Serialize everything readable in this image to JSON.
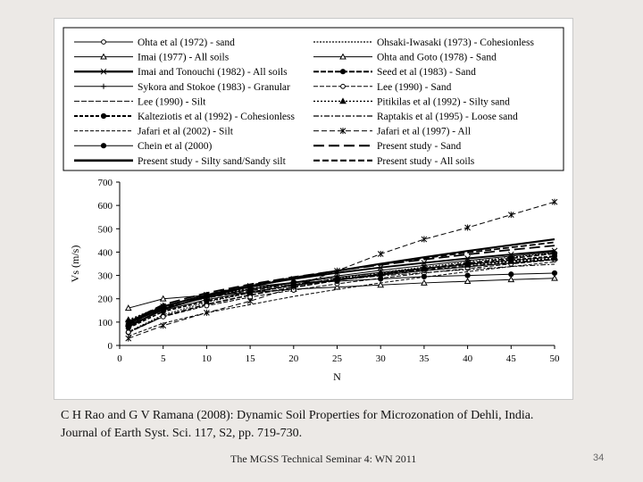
{
  "slide": {
    "caption_line1": "C H Rao and G V Ramana (2008): Dynamic Soil Properties for Microzonation of Dehli, India.",
    "caption_line2": "Journal of Earth Syst. Sci. 117, S2, pp. 719-730.",
    "footer": "The MGSS Technical Seminar 4: WN 2011",
    "page_number": "34"
  },
  "chart_data": {
    "type": "line",
    "title": "",
    "xlabel": "N",
    "ylabel": "Vs (m/s)",
    "xlim": [
      0,
      50
    ],
    "ylim": [
      0,
      700
    ],
    "xticks": [
      0,
      5,
      10,
      15,
      20,
      25,
      30,
      35,
      40,
      45,
      50
    ],
    "yticks": [
      0,
      100,
      200,
      300,
      400,
      500,
      600,
      700
    ],
    "grid": false,
    "legend_position": "top",
    "x": [
      1,
      5,
      10,
      15,
      20,
      25,
      30,
      35,
      40,
      45,
      50
    ],
    "series": [
      {
        "name": "Ohta et al (1972) - sand",
        "values": [
          88,
          150,
          196,
          230,
          257,
          280,
          301,
          320,
          337,
          353,
          368
        ]
      },
      {
        "name": "Ohsaki-Iwasaki (1973) - Cohesionless",
        "values": [
          59,
          131,
          185,
          225,
          258,
          287,
          313,
          336,
          358,
          378,
          397
        ]
      },
      {
        "name": "Imai (1977) - All soils",
        "values": [
          92,
          158,
          205,
          240,
          268,
          292,
          313,
          331,
          348,
          364,
          379
        ]
      },
      {
        "name": "Ohta and Goto (1978) - Sand",
        "values": [
          160,
          200,
          215,
          226,
          241,
          250,
          259,
          268,
          275,
          282,
          288
        ]
      },
      {
        "name": "Imai and Tonouchi (1982) - All soils",
        "values": [
          97,
          167,
          217,
          255,
          285,
          311,
          334,
          354,
          373,
          390,
          406
        ]
      },
      {
        "name": "Seed et al (1983) - Sand",
        "values": [
          56,
          125,
          176,
          216,
          249,
          279,
          305,
          330,
          352,
          373,
          394
        ]
      },
      {
        "name": "Sykora and Stokoe (1983) - Granular",
        "values": [
          100,
          160,
          205,
          241,
          271,
          298,
          322,
          343,
          364,
          383,
          400
        ]
      },
      {
        "name": "Lee (1990) - Sand",
        "values": [
          57,
          123,
          170,
          207,
          237,
          264,
          288,
          310,
          330,
          349,
          367
        ]
      },
      {
        "name": "Lee (1990) - Silt",
        "values": [
          105,
          164,
          203,
          235,
          262,
          285,
          305,
          323,
          340,
          356,
          371
        ]
      },
      {
        "name": "Pitikilas et al (1992) - Silty sand",
        "values": [
          110,
          170,
          212,
          244,
          270,
          292,
          311,
          329,
          345,
          360,
          374
        ]
      },
      {
        "name": "Kalteziotis et al (1992) - Cohesionless",
        "values": [
          75,
          145,
          190,
          226,
          257,
          283,
          306,
          327,
          347,
          366,
          383
        ]
      },
      {
        "name": "Raptakis et al (1995) - Loose sand",
        "values": [
          105,
          170,
          210,
          240,
          262,
          280,
          298,
          312,
          325,
          338,
          348
        ]
      },
      {
        "name": "Jafari et al (2002) - Silt",
        "values": [
          40,
          95,
          140,
          175,
          210,
          240,
          268,
          293,
          316,
          338,
          358
        ]
      },
      {
        "name": "Jafari et al (1997) - All",
        "values": [
          30,
          85,
          140,
          190,
          250,
          320,
          392,
          455,
          505,
          560,
          615
        ]
      },
      {
        "name": "Chein et al (2000)",
        "values": [
          90,
          165,
          215,
          250,
          270,
          275,
          285,
          295,
          300,
          305,
          310
        ]
      },
      {
        "name": "Present study - Sand",
        "values": [
          100,
          175,
          225,
          262,
          293,
          320,
          345,
          368,
          390,
          410,
          428
        ]
      },
      {
        "name": "Present study - Silty sand/Sandy silt",
        "values": [
          80,
          155,
          210,
          252,
          288,
          320,
          350,
          378,
          405,
          430,
          455
        ]
      },
      {
        "name": "Present study - All soils",
        "values": [
          90,
          165,
          218,
          258,
          291,
          320,
          348,
          374,
          398,
          420,
          442
        ]
      }
    ]
  }
}
